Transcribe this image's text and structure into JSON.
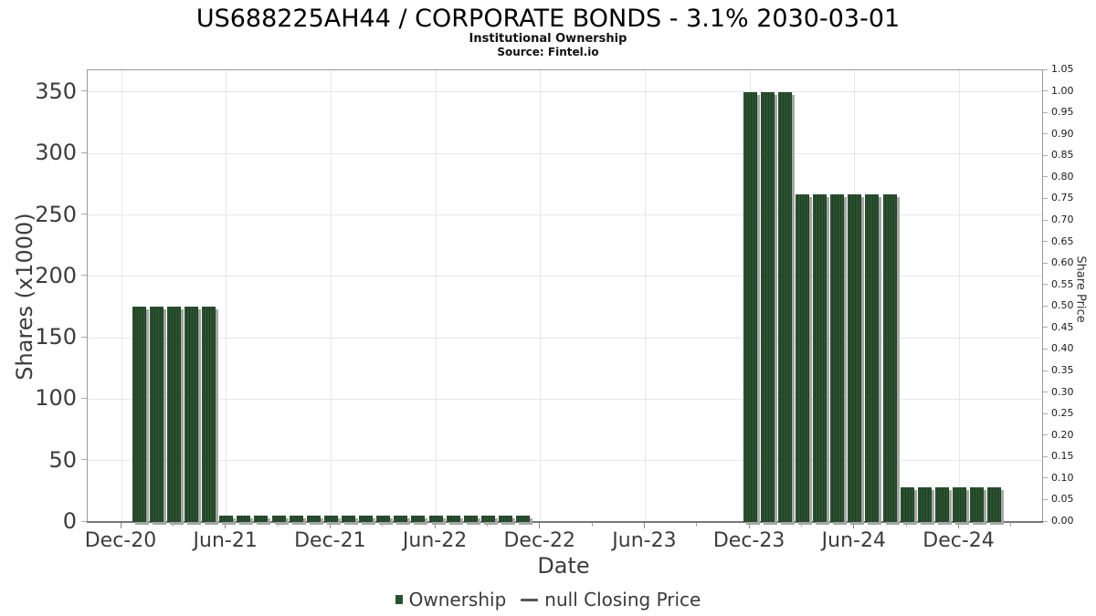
{
  "header": {
    "title": "US688225AH44 / CORPORATE BONDS - 3.1% 2030-03-01",
    "subtitle": "Institutional Ownership",
    "source": "Source: Fintel.io"
  },
  "legend": {
    "ownership_label": "Ownership",
    "closing_price_label": "null Closing Price"
  },
  "colors": {
    "bar": "#2b5230",
    "bar_stripe": "#1e4022",
    "bar_shadow": "#a6a6a6",
    "grid": "#e7e7e7",
    "axis": "#888888",
    "minor_tick": "#aaaaaa",
    "tick_label": "#3d3d3d",
    "right_tick_label": "#1a1a1a"
  },
  "chart_data": {
    "type": "bar",
    "title": "US688225AH44 / CORPORATE BONDS - 3.1% 2030-03-01",
    "subtitle": "Institutional Ownership",
    "source": "Source: Fintel.io",
    "xlabel": "Date",
    "ylabel_left": "Shares (x1000)",
    "ylabel_right": "Share Price",
    "grid": true,
    "legend_position": "bottom",
    "x_tick_labels": [
      "Dec-20",
      "Jun-21",
      "Dec-21",
      "Jun-22",
      "Dec-22",
      "Jun-23",
      "Dec-23",
      "Jun-24",
      "Dec-24"
    ],
    "x_tick_month_index": [
      -1,
      5,
      11,
      17,
      23,
      29,
      35,
      41,
      47
    ],
    "y_left_ticks": [
      0,
      50,
      100,
      150,
      200,
      250,
      300,
      350
    ],
    "y_left_lim": [
      0,
      368
    ],
    "y_right_tick_labels": [
      "0.00",
      "0.05",
      "0.10",
      "0.15",
      "0.20",
      "0.25",
      "0.30",
      "0.35",
      "0.40",
      "0.45",
      "0.50",
      "0.55",
      "0.60",
      "0.65",
      "0.70",
      "0.75",
      "0.80",
      "0.85",
      "0.90",
      "0.95",
      "1.00",
      "1.05"
    ],
    "y_right_lim": [
      0,
      1.05
    ],
    "series": [
      {
        "name": "Ownership",
        "type": "bar",
        "unit": "shares x1000",
        "months": [
          "Jan-21",
          "Feb-21",
          "Mar-21",
          "Apr-21",
          "May-21",
          "Jun-21",
          "Jul-21",
          "Aug-21",
          "Sep-21",
          "Oct-21",
          "Nov-21",
          "Dec-21",
          "Jan-22",
          "Feb-22",
          "Mar-22",
          "Apr-22",
          "May-22",
          "Jun-22",
          "Jul-22",
          "Aug-22",
          "Sep-22",
          "Oct-22",
          "Nov-22",
          "Dec-22",
          "Jan-23",
          "Feb-23",
          "Mar-23",
          "Apr-23",
          "May-23",
          "Jun-23",
          "Jul-23",
          "Aug-23",
          "Sep-23",
          "Oct-23",
          "Nov-23",
          "Dec-23",
          "Jan-24",
          "Feb-24",
          "Mar-24",
          "Apr-24",
          "May-24",
          "Jun-24",
          "Jul-24",
          "Aug-24",
          "Sep-24",
          "Oct-24",
          "Nov-24",
          "Dec-24",
          "Jan-25",
          "Feb-25"
        ],
        "values": [
          175,
          175,
          175,
          175,
          175,
          5,
          5,
          5,
          5,
          5,
          5,
          5,
          5,
          5,
          5,
          5,
          5,
          5,
          5,
          5,
          5,
          5,
          5,
          0,
          0,
          0,
          0,
          0,
          0,
          0,
          0,
          0,
          0,
          0,
          0,
          350,
          350,
          350,
          267,
          267,
          267,
          267,
          267,
          267,
          28,
          28,
          28,
          28,
          28,
          28
        ]
      },
      {
        "name": "null Closing Price",
        "type": "line",
        "values": []
      }
    ]
  }
}
